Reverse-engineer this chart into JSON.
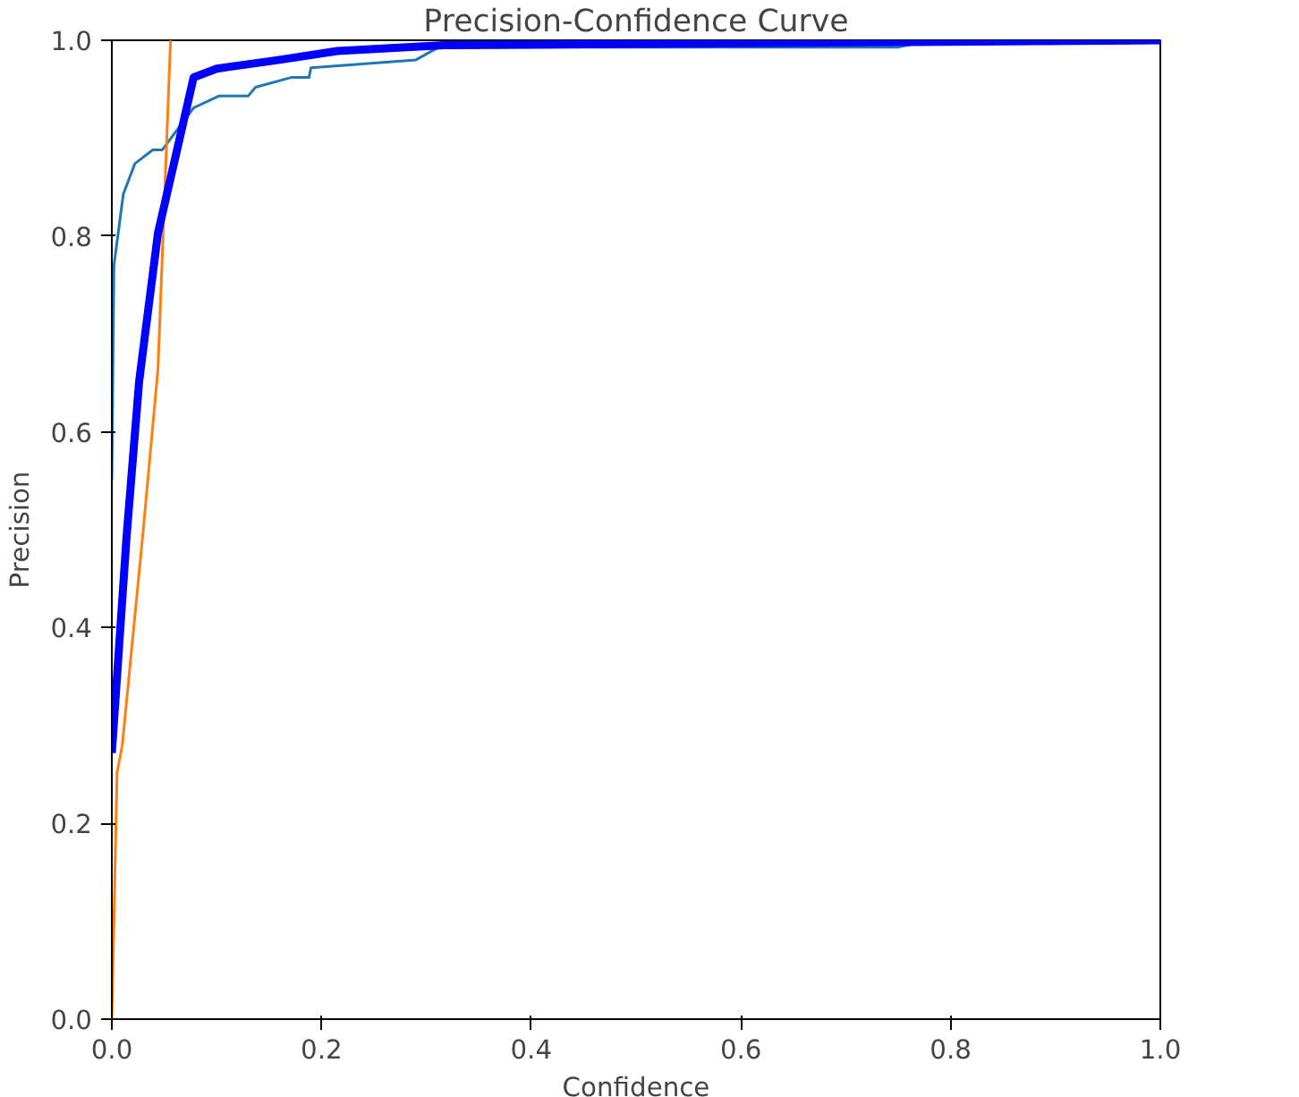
{
  "chart_data": {
    "type": "line",
    "title": "Precision-Confidence Curve",
    "xlabel": "Confidence",
    "ylabel": "Precision",
    "xlim": [
      0,
      1
    ],
    "ylim": [
      0,
      1
    ],
    "xticks": [
      {
        "value": 0,
        "label": "0.0"
      },
      {
        "value": 0.2,
        "label": "0.2"
      },
      {
        "value": 0.4,
        "label": "0.4"
      },
      {
        "value": 0.6,
        "label": "0.6"
      },
      {
        "value": 0.8,
        "label": "0.8"
      },
      {
        "value": 1,
        "label": "1.0"
      }
    ],
    "yticks": [
      {
        "value": 0,
        "label": "0.0"
      },
      {
        "value": 0.2,
        "label": "0.2"
      },
      {
        "value": 0.4,
        "label": "0.4"
      },
      {
        "value": 0.6,
        "label": "0.6"
      },
      {
        "value": 0.8,
        "label": "0.8"
      },
      {
        "value": 1,
        "label": "1.0"
      }
    ],
    "grid": false,
    "series": [
      {
        "color": "#1f77b4",
        "x": [
          0,
          0.002,
          0.011,
          0.022,
          0.039,
          0.048,
          0.078,
          0.102,
          0.13,
          0.137,
          0.171,
          0.188,
          0.19,
          0.29,
          0.312,
          0.75,
          0.78,
          1.0
        ],
        "values": [
          0.55,
          0.77,
          0.843,
          0.874,
          0.888,
          0.888,
          0.931,
          0.943,
          0.943,
          0.952,
          0.962,
          0.962,
          0.972,
          0.98,
          0.993,
          0.993,
          1.0,
          1.0
        ]
      },
      {
        "color": "#ff7f0e",
        "x": [
          0,
          0.005,
          0.01,
          0.03,
          0.044,
          0.056
        ],
        "values": [
          0.0,
          0.252,
          0.28,
          0.5,
          0.664,
          1.0
        ]
      },
      {
        "color": "#0000ff",
        "x": [
          0,
          0.014,
          0.026,
          0.044,
          0.065,
          0.078,
          0.1,
          0.16,
          0.215,
          0.317,
          1.0
        ],
        "values": [
          0.272,
          0.492,
          0.651,
          0.803,
          0.901,
          0.962,
          0.971,
          0.98,
          0.989,
          0.995,
          1.0
        ]
      }
    ]
  }
}
